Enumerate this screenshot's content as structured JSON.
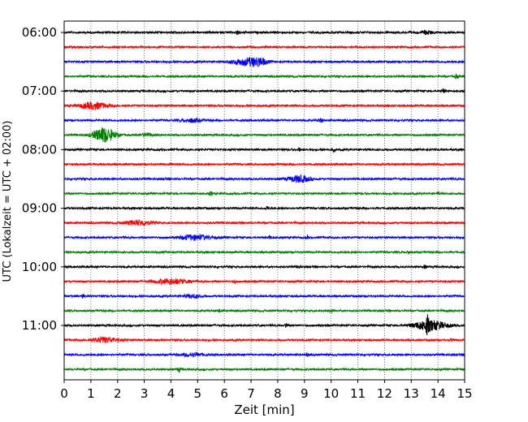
{
  "chart_data": {
    "type": "line",
    "title": "",
    "xlabel": "Zeit  [min]",
    "ylabel": "UTC (Lokalzeit = UTC + 02:00)",
    "xlim": [
      0,
      15
    ],
    "xticks": [
      0,
      1,
      2,
      3,
      4,
      5,
      6,
      7,
      8,
      9,
      10,
      11,
      12,
      13,
      14,
      15
    ],
    "ytick_labels": [
      "06:00",
      "07:00",
      "08:00",
      "09:00",
      "10:00",
      "11:00"
    ],
    "grid": "vertical dotted",
    "colors": [
      "#000000",
      "#ff0000",
      "#0000ff",
      "#008000"
    ],
    "rows": [
      {
        "start": "06:00",
        "color": "#000000",
        "events": [
          [
            6.5,
            3,
            0.05
          ],
          [
            13.6,
            2,
            0.2
          ]
        ]
      },
      {
        "start": "06:15",
        "color": "#ff0000",
        "events": []
      },
      {
        "start": "06:30",
        "color": "#0000ff",
        "events": [
          [
            6.8,
            4,
            0.5
          ],
          [
            7.3,
            4,
            0.3
          ]
        ]
      },
      {
        "start": "06:45",
        "color": "#008000",
        "events": [
          [
            14.7,
            2,
            0.08
          ]
        ]
      },
      {
        "start": "07:00",
        "color": "#000000",
        "events": [
          [
            14.2,
            2,
            0.08
          ]
        ]
      },
      {
        "start": "07:15",
        "color": "#ff0000",
        "events": [
          [
            1.1,
            4,
            0.5
          ]
        ]
      },
      {
        "start": "07:30",
        "color": "#0000ff",
        "events": [
          [
            4.8,
            2,
            0.4
          ],
          [
            9.6,
            2,
            0.1
          ]
        ]
      },
      {
        "start": "07:45",
        "color": "#008000",
        "events": [
          [
            1.5,
            9,
            0.4
          ],
          [
            3.1,
            2,
            0.2
          ]
        ]
      },
      {
        "start": "08:00",
        "color": "#000000",
        "events": [
          [
            8.8,
            2,
            0.05
          ],
          [
            10.1,
            2,
            0.05
          ]
        ]
      },
      {
        "start": "08:15",
        "color": "#ff0000",
        "events": [
          [
            4.0,
            2,
            0.05
          ]
        ]
      },
      {
        "start": "08:30",
        "color": "#0000ff",
        "events": [
          [
            8.8,
            4,
            0.4
          ]
        ]
      },
      {
        "start": "08:45",
        "color": "#008000",
        "events": [
          [
            5.5,
            2,
            0.05
          ],
          [
            14.0,
            2,
            0.05
          ]
        ]
      },
      {
        "start": "09:00",
        "color": "#000000",
        "events": [
          [
            7.6,
            2,
            0.05
          ]
        ]
      },
      {
        "start": "09:15",
        "color": "#ff0000",
        "events": [
          [
            2.8,
            3,
            0.5
          ]
        ]
      },
      {
        "start": "09:30",
        "color": "#0000ff",
        "events": [
          [
            4.9,
            3,
            0.6
          ],
          [
            7.7,
            2,
            0.05
          ],
          [
            9.1,
            2,
            0.05
          ]
        ]
      },
      {
        "start": "09:45",
        "color": "#008000",
        "events": [
          [
            12.9,
            2,
            0.05
          ]
        ]
      },
      {
        "start": "10:00",
        "color": "#000000",
        "events": [
          [
            8.8,
            2,
            0.05
          ],
          [
            13.5,
            2,
            0.05
          ]
        ]
      },
      {
        "start": "10:15",
        "color": "#ff0000",
        "events": [
          [
            4.0,
            3,
            0.6
          ],
          [
            6.4,
            2,
            0.05
          ]
        ]
      },
      {
        "start": "10:30",
        "color": "#0000ff",
        "events": [
          [
            0.7,
            2,
            0.05
          ],
          [
            4.8,
            2,
            0.3
          ]
        ]
      },
      {
        "start": "10:45",
        "color": "#008000",
        "events": [
          [
            5.8,
            2,
            0.05
          ],
          [
            10.0,
            2,
            0.05
          ]
        ]
      },
      {
        "start": "11:00",
        "color": "#000000",
        "events": [
          [
            13.7,
            6,
            0.6
          ],
          [
            13.6,
            8,
            0.05
          ],
          [
            8.3,
            2,
            0.05
          ]
        ]
      },
      {
        "start": "11:15",
        "color": "#ff0000",
        "events": [
          [
            1.5,
            3,
            0.5
          ],
          [
            14.5,
            2,
            0.05
          ]
        ]
      },
      {
        "start": "11:30",
        "color": "#0000ff",
        "events": [
          [
            4.8,
            2,
            0.4
          ],
          [
            9.1,
            2,
            0.05
          ]
        ]
      },
      {
        "start": "11:45",
        "color": "#008000",
        "events": [
          [
            4.3,
            3,
            0.05
          ]
        ]
      }
    ]
  }
}
